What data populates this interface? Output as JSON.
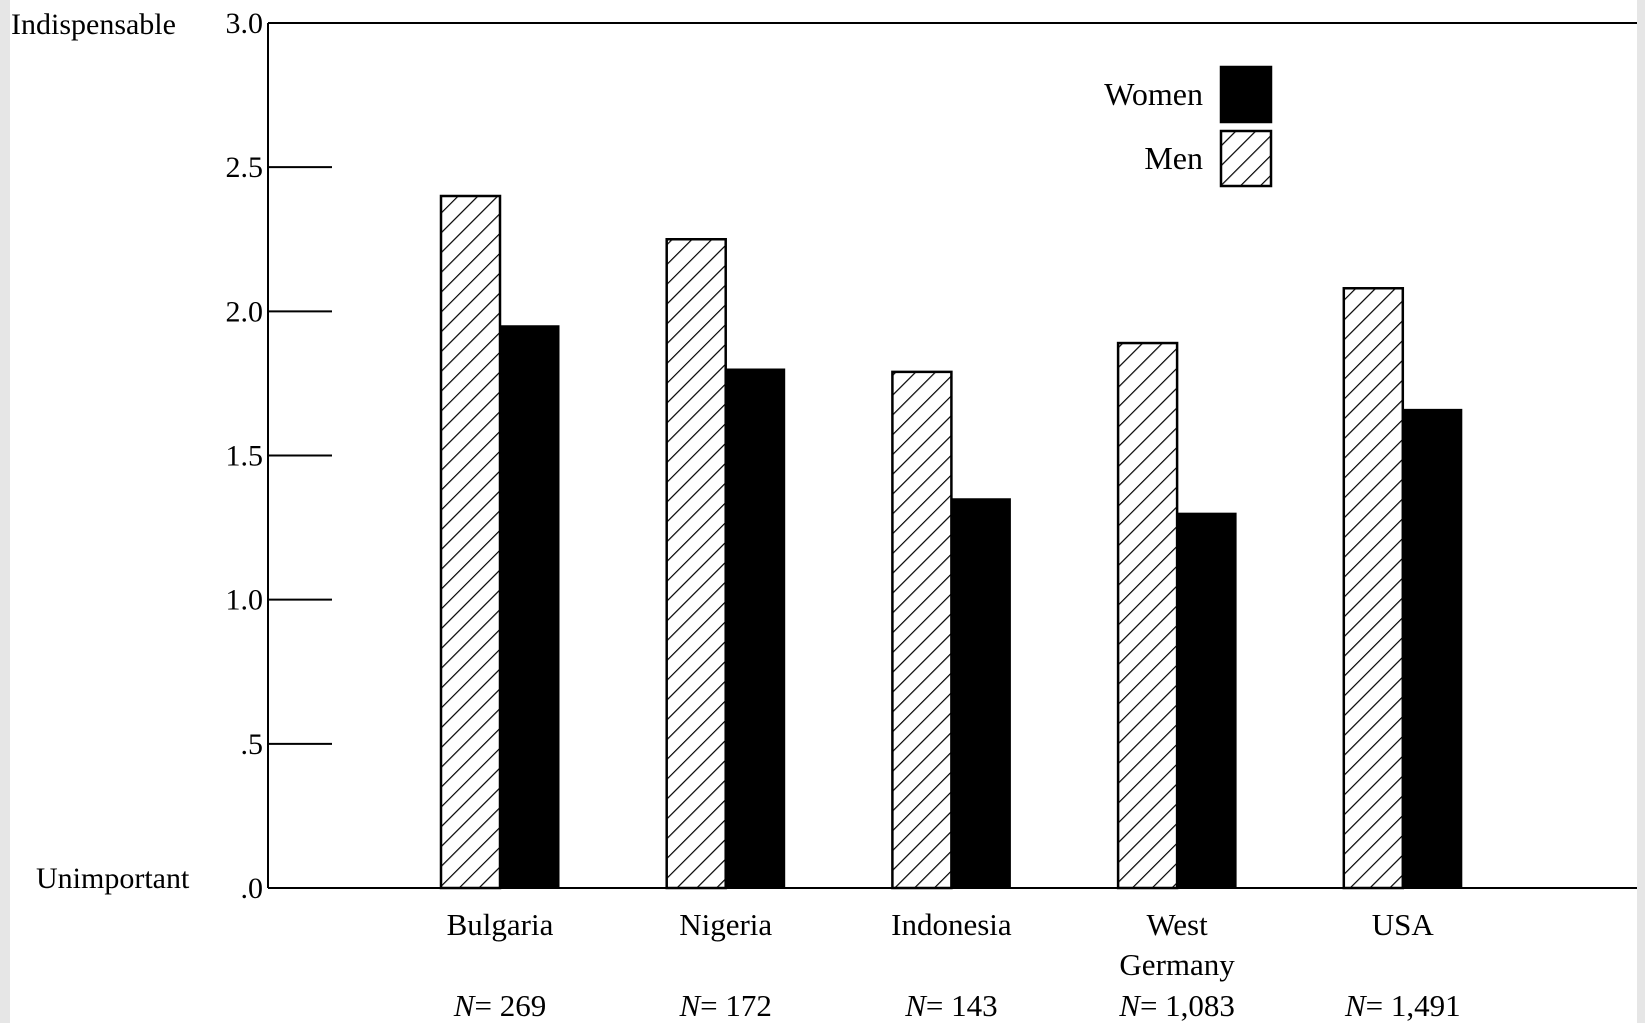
{
  "chart_data": {
    "type": "bar",
    "title": "",
    "xlabel": "",
    "ylabel": "",
    "ylim": [
      0,
      3.0
    ],
    "y_ticks": [
      {
        "value": 0.0,
        "label": ".0"
      },
      {
        "value": 0.5,
        "label": ".5"
      },
      {
        "value": 1.0,
        "label": "1.0"
      },
      {
        "value": 1.5,
        "label": "1.5"
      },
      {
        "value": 2.0,
        "label": "2.0"
      },
      {
        "value": 2.5,
        "label": "2.5"
      },
      {
        "value": 3.0,
        "label": "3.0"
      }
    ],
    "y_anchor_labels": {
      "top": "Indispensable",
      "bottom": "Unimportant"
    },
    "categories": [
      "Bulgaria",
      "Nigeria",
      "Indonesia",
      "West Germany",
      "USA"
    ],
    "category_label_lines": [
      [
        "Bulgaria"
      ],
      [
        "Nigeria"
      ],
      [
        "Indonesia"
      ],
      [
        "West",
        "Germany"
      ],
      [
        "USA"
      ]
    ],
    "sample_sizes": [
      "269",
      "172",
      "143",
      "1,083",
      "1,491"
    ],
    "sample_size_prefix": "N",
    "series": [
      {
        "name": "Men",
        "values": [
          2.4,
          2.25,
          1.79,
          1.89,
          2.08
        ],
        "fill": "hatched"
      },
      {
        "name": "Women",
        "values": [
          1.95,
          1.8,
          1.35,
          1.3,
          1.66
        ],
        "fill": "solid",
        "color": "#000000"
      }
    ],
    "legend": {
      "placement": "top-right",
      "order": [
        "Women",
        "Men"
      ]
    },
    "grid": false
  }
}
